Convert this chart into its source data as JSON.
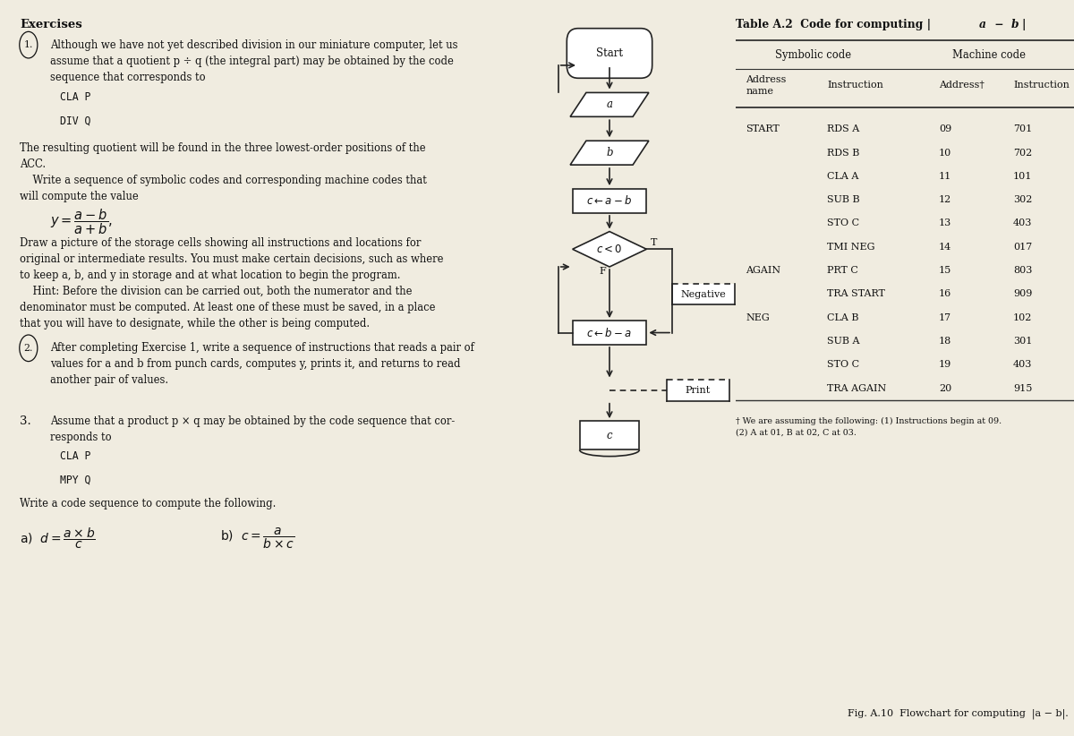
{
  "title": "Table A.2  Code for computing |a − b|",
  "table_rows": [
    [
      "START",
      "RDS A",
      "09",
      "701"
    ],
    [
      "",
      "RDS B",
      "10",
      "702"
    ],
    [
      "",
      "CLA A",
      "11",
      "101"
    ],
    [
      "",
      "SUB B",
      "12",
      "302"
    ],
    [
      "",
      "STO C",
      "13",
      "403"
    ],
    [
      "",
      "TMI NEG",
      "14",
      "017"
    ],
    [
      "AGAIN",
      "PRT C",
      "15",
      "803"
    ],
    [
      "",
      "TRA START",
      "16",
      "909"
    ],
    [
      "NEG",
      "CLA B",
      "17",
      "102"
    ],
    [
      "",
      "SUB A",
      "18",
      "301"
    ],
    [
      "",
      "STO C",
      "19",
      "403"
    ],
    [
      "",
      "TRA AGAIN",
      "20",
      "915"
    ]
  ],
  "footnote": "† We are assuming the following: (1) Instructions begin at 09.\n(2) A at 01, B at 02, C at 03.",
  "fig_caption": "Fig. A.10  Flowchart for computing  |a − b|.",
  "bg_color": "#f0ece0",
  "text_color": "#111111",
  "line_color": "#222222",
  "table_line_color": "#333333"
}
